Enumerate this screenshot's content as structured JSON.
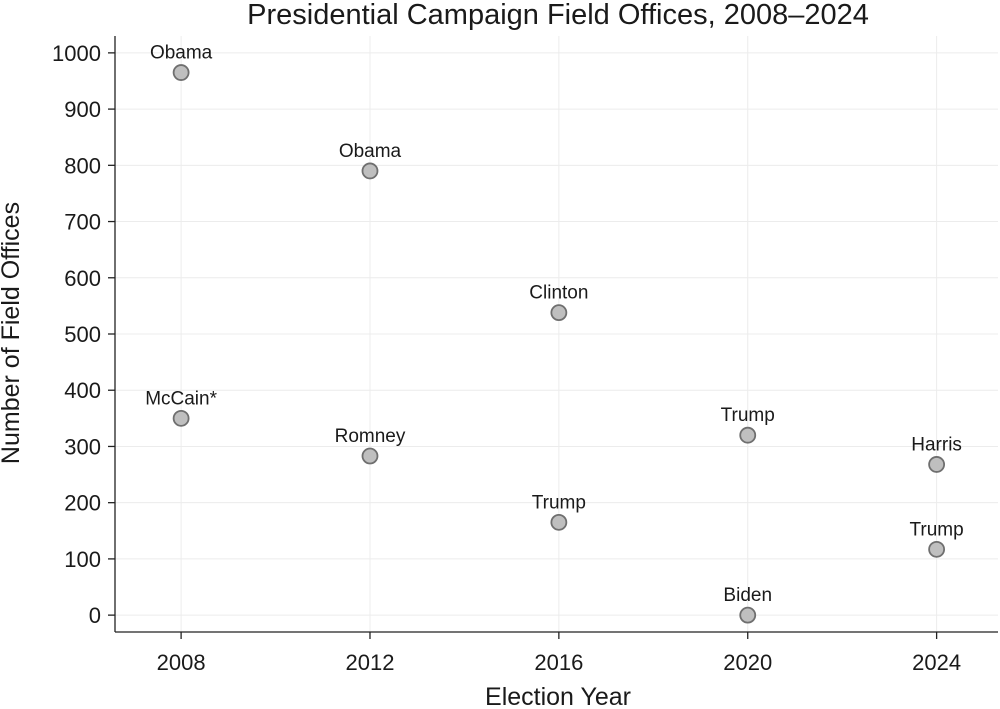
{
  "chart_data": {
    "type": "scatter",
    "title": "Presidential Campaign Field Offices, 2008–2024",
    "xlabel": "Election Year",
    "ylabel": "Number of Field Offices",
    "xlim": [
      2006.6,
      2025.3
    ],
    "ylim": [
      -30,
      1030
    ],
    "xticks": [
      2008,
      2012,
      2016,
      2020,
      2024
    ],
    "yticks": [
      0,
      100,
      200,
      300,
      400,
      500,
      600,
      700,
      800,
      900,
      1000
    ],
    "grid": true,
    "marker_color": "#bfbfbf",
    "marker_edge_color": "#6f6f6f",
    "points": [
      {
        "x": 2008,
        "y": 965,
        "label": "Obama"
      },
      {
        "x": 2008,
        "y": 350,
        "label": "McCain*"
      },
      {
        "x": 2012,
        "y": 790,
        "label": "Obama"
      },
      {
        "x": 2012,
        "y": 283,
        "label": "Romney"
      },
      {
        "x": 2016,
        "y": 538,
        "label": "Clinton"
      },
      {
        "x": 2016,
        "y": 165,
        "label": "Trump"
      },
      {
        "x": 2020,
        "y": 320,
        "label": "Trump"
      },
      {
        "x": 2020,
        "y": 0,
        "label": "Biden"
      },
      {
        "x": 2024,
        "y": 268,
        "label": "Harris"
      },
      {
        "x": 2024,
        "y": 117,
        "label": "Trump"
      }
    ]
  }
}
